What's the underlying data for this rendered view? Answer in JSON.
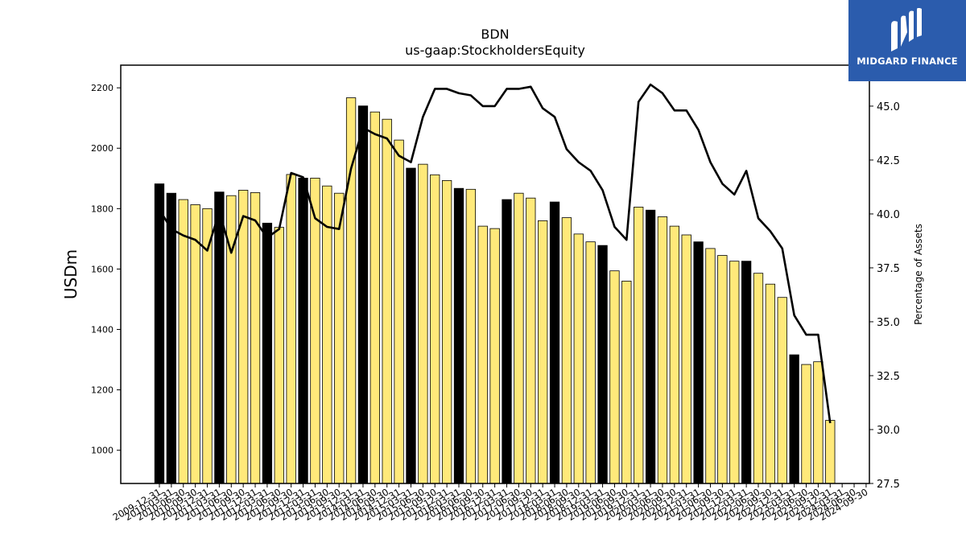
{
  "logo": {
    "text": "MIDGARD FINANCE"
  },
  "chart_data": {
    "type": "bar",
    "title": "BDN",
    "subtitle": "us-gaap:StockholdersEquity",
    "ylabel": "USDm",
    "y2label": "Percentage of Assets",
    "ylim": [
      890,
      2275
    ],
    "y2lim": [
      27.5,
      46.9
    ],
    "yticks": [
      1000,
      1200,
      1400,
      1600,
      1800,
      2000,
      2200
    ],
    "y2ticks": [
      "27.5",
      "30.0",
      "32.5",
      "35.0",
      "37.5",
      "40.0",
      "42.5",
      "45.0"
    ],
    "grid": false,
    "colors": {
      "annual_bar": "#000000",
      "quarter_bar": "#ffe97a",
      "line": "#000000"
    },
    "categories": [
      "2009-12-31",
      "2010-03-31",
      "2010-06-30",
      "2010-09-30",
      "2010-12-31",
      "2011-03-31",
      "2011-06-30",
      "2011-09-30",
      "2011-12-31",
      "2012-03-31",
      "2012-06-30",
      "2012-09-30",
      "2012-12-31",
      "2013-03-31",
      "2013-06-30",
      "2013-09-30",
      "2013-12-31",
      "2014-03-31",
      "2014-06-30",
      "2014-09-30",
      "2014-12-31",
      "2015-03-31",
      "2015-06-30",
      "2015-09-30",
      "2015-12-31",
      "2016-03-31",
      "2016-06-30",
      "2016-09-30",
      "2016-12-31",
      "2017-03-31",
      "2017-06-30",
      "2017-09-30",
      "2017-12-31",
      "2018-03-31",
      "2018-06-30",
      "2018-09-30",
      "2018-12-31",
      "2019-03-31",
      "2019-06-30",
      "2019-09-30",
      "2019-12-31",
      "2020-03-31",
      "2020-06-30",
      "2020-09-30",
      "2020-12-31",
      "2021-03-31",
      "2021-06-30",
      "2021-09-30",
      "2021-12-31",
      "2022-03-31",
      "2022-06-30",
      "2022-09-30",
      "2022-12-31",
      "2023-03-31",
      "2023-06-30",
      "2023-09-30",
      "2023-12-31",
      "2024-03-31",
      "2024-06-30",
      "2024-09-30"
    ],
    "xtick_labels": [
      "2009-12-31",
      "2010-03-31",
      "2010-06-30",
      "2010-09-30",
      "2010-12-31",
      "2011-03-31",
      "2011-06-30",
      "2011-09-30",
      "2011-12-31",
      "2012-03-31",
      "2012-06-30",
      "2012-09-30",
      "2012-12-31",
      "2013-03-31",
      "2013-06-30",
      "2013-09-30",
      "2013-12-31",
      "2014-03-31",
      "2014-06-30",
      "2014-09-30",
      "2014-12-31",
      "2015-03-31",
      "2015-06-30",
      "2015-09-30",
      "2015-12-31",
      "2016-03-31",
      "2016-06-30",
      "2016-09-30",
      "2016-12-31",
      "2017-03-31",
      "2017-06-30",
      "2017-09-30",
      "2017-12-31",
      "2018-03-31",
      "2018-06-30",
      "2018-09-30",
      "2018-12-31",
      "2019-03-31",
      "2019-06-30",
      "2019-09-30",
      "2019-12-31",
      "2020-03-31",
      "2020-06-30",
      "2020-09-30",
      "2020-12-31",
      "2021-03-31",
      "2021-06-30",
      "2021-09-30",
      "2021-12-31",
      "2022-03-31",
      "2022-06-30",
      "2022-09-30",
      "2022-12-31",
      "2023-03-31",
      "2023-06-30",
      "2023-09-30",
      "2023-12-31",
      "2024-03-31",
      "2024-06-30",
      "2024-09-30"
    ],
    "series": [
      {
        "kind": "bar",
        "values": [
          1882,
          1851,
          1830,
          1813,
          1800,
          1855,
          1843,
          1861,
          1853,
          1752,
          1738,
          1913,
          1901,
          1901,
          1875,
          1851,
          2167,
          2140,
          2120,
          2096,
          2027,
          1934,
          1947,
          1912,
          1893,
          1867,
          1864,
          1742,
          1734,
          1830,
          1851,
          1835,
          1760,
          1822,
          1770,
          1716,
          1690,
          1678,
          1594,
          1560,
          1805,
          1795,
          1773,
          1742,
          1713,
          1690,
          1668,
          1645,
          1626,
          1626,
          1586,
          1550,
          1506,
          1316,
          1284,
          1293,
          1099,
          null,
          null,
          null
        ],
        "annual": [
          true,
          true,
          false,
          false,
          false,
          true,
          false,
          false,
          false,
          true,
          false,
          false,
          true,
          false,
          false,
          false,
          false,
          true,
          false,
          false,
          false,
          true,
          false,
          false,
          false,
          true,
          false,
          false,
          false,
          true,
          false,
          false,
          false,
          true,
          false,
          false,
          false,
          true,
          false,
          false,
          false,
          true,
          false,
          false,
          false,
          true,
          false,
          false,
          false,
          true,
          false,
          false,
          false,
          true,
          false,
          false,
          false,
          false,
          false,
          false
        ]
      },
      {
        "kind": "line",
        "values": [
          40.2,
          39.3,
          39.0,
          38.8,
          38.3,
          40.1,
          38.2,
          39.9,
          39.7,
          38.9,
          39.3,
          41.9,
          41.7,
          39.8,
          39.4,
          39.3,
          42.1,
          44.0,
          43.7,
          43.5,
          42.7,
          42.4,
          44.5,
          45.8,
          45.8,
          45.6,
          45.5,
          45.0,
          45.0,
          45.8,
          45.8,
          45.9,
          44.9,
          44.5,
          43.0,
          42.4,
          42.0,
          41.1,
          39.4,
          38.8,
          45.2,
          46.0,
          45.6,
          44.8,
          44.8,
          43.9,
          42.4,
          41.4,
          40.9,
          42.0,
          39.8,
          39.2,
          38.4,
          35.3,
          34.4,
          34.4,
          30.3,
          null,
          null,
          null
        ]
      }
    ]
  }
}
